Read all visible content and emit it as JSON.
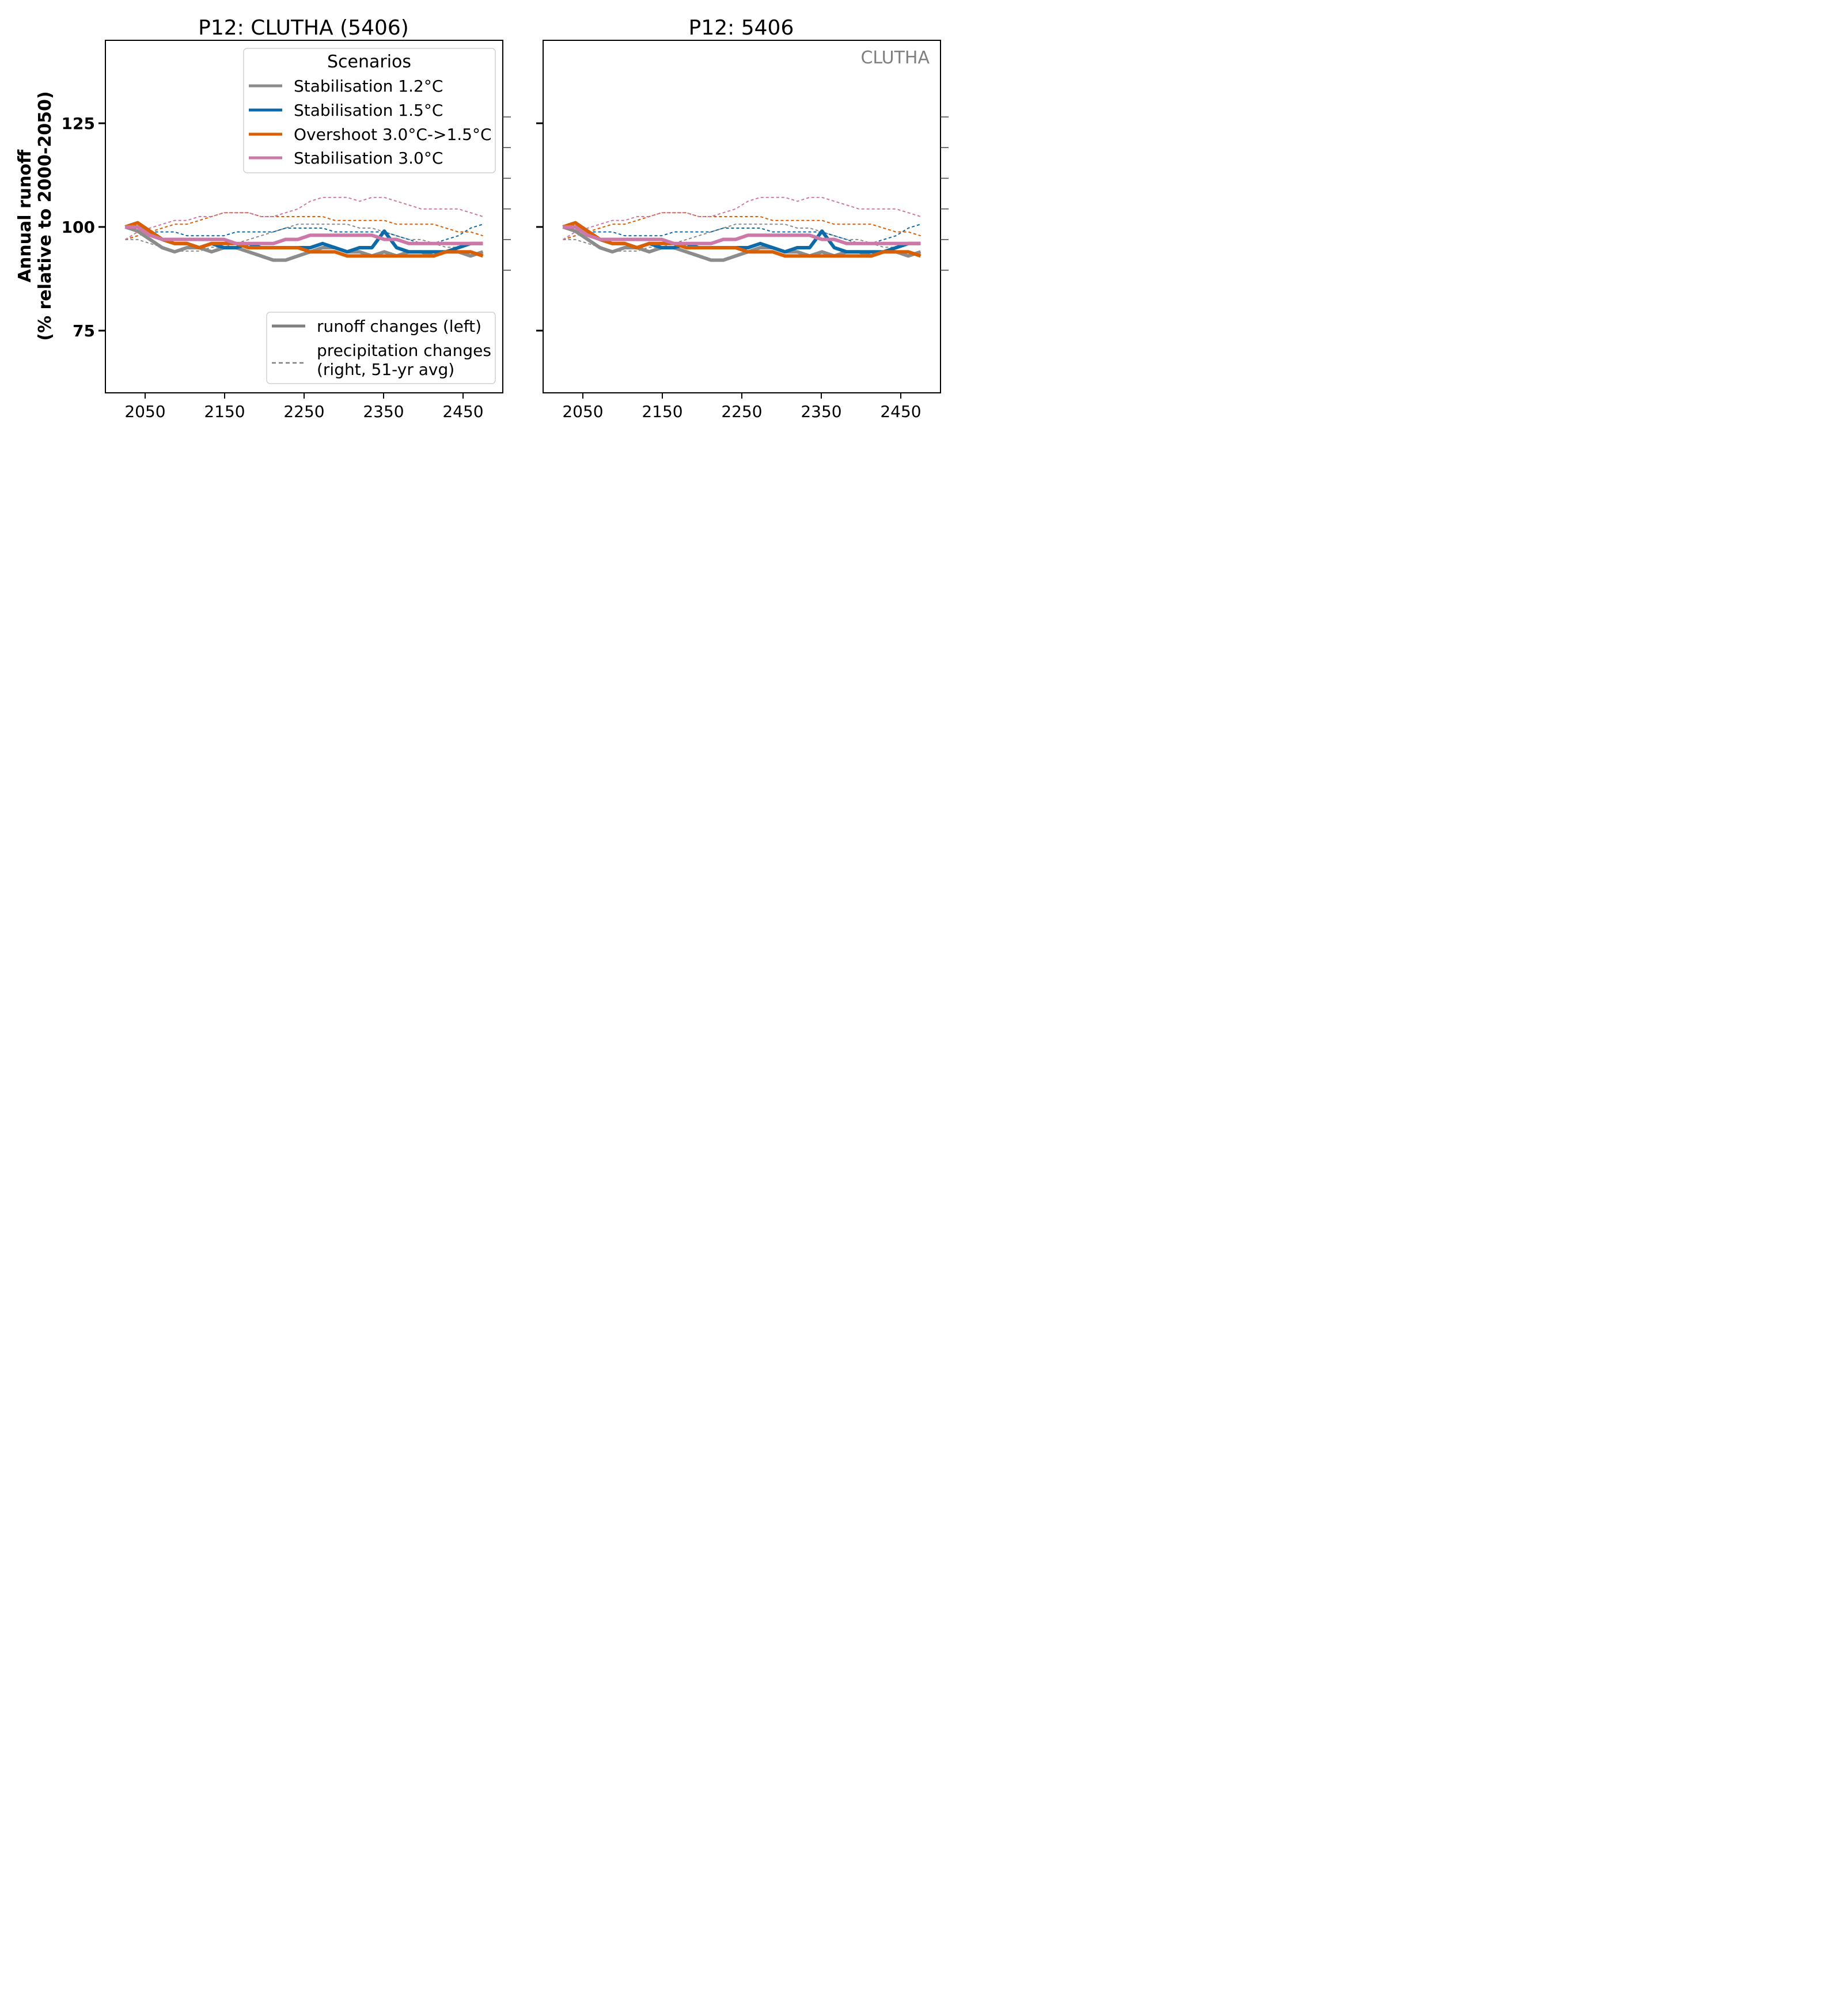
{
  "chart_data": {
    "type": "line",
    "ylabel_line1": "Annual runoff",
    "ylabel_line2": "(% relative to 2000-2050)",
    "ylim": [
      60,
      145
    ],
    "yticks": [
      75,
      100,
      125
    ],
    "xlim": [
      2000,
      2500
    ],
    "xticks": [
      2050,
      2150,
      2250,
      2350,
      2450
    ],
    "x_start": 2025,
    "x_end": 2475,
    "series_meta": [
      {
        "name": "Stabilisation 1.2°C",
        "color": "#8c8c8c"
      },
      {
        "name": "Stabilisation 1.5°C",
        "color": "#0d6aa8"
      },
      {
        "name": "Overshoot 3.0°C->1.5°C",
        "color": "#d95f02"
      },
      {
        "name": "Stabilisation 3.0°C",
        "color": "#cc79a7"
      }
    ],
    "runoff_series": [
      [
        100,
        99,
        97,
        95,
        94,
        95,
        95,
        94,
        95,
        95,
        94,
        93,
        92,
        92,
        93,
        94,
        95,
        95,
        94,
        94,
        93,
        94,
        93,
        94,
        94,
        93,
        94,
        94,
        93,
        94
      ],
      [
        100,
        101,
        99,
        97,
        96,
        96,
        95,
        96,
        95,
        95,
        96,
        95,
        95,
        95,
        95,
        95,
        96,
        95,
        94,
        95,
        95,
        99,
        95,
        94,
        94,
        94,
        94,
        95,
        96,
        96
      ],
      [
        100,
        101,
        99,
        97,
        96,
        96,
        95,
        96,
        96,
        96,
        95,
        95,
        95,
        95,
        95,
        94,
        94,
        94,
        93,
        93,
        93,
        93,
        93,
        93,
        93,
        93,
        94,
        94,
        94,
        93
      ],
      [
        100,
        100,
        98,
        97,
        97,
        97,
        97,
        97,
        97,
        96,
        96,
        96,
        96,
        97,
        97,
        98,
        98,
        98,
        98,
        98,
        98,
        97,
        97,
        96,
        96,
        96,
        96,
        96,
        96,
        96
      ]
    ],
    "precip_series": [
      [
        100,
        100,
        99,
        98,
        97,
        97,
        97,
        98,
        98,
        99,
        100,
        101,
        102,
        103,
        104,
        104,
        104,
        104,
        104,
        103,
        103,
        102,
        101,
        100,
        100,
        99,
        98,
        98,
        99,
        99
      ],
      [
        100,
        101,
        102,
        102,
        102,
        101,
        101,
        101,
        101,
        102,
        102,
        102,
        102,
        103,
        103,
        103,
        103,
        102,
        102,
        102,
        102,
        102,
        101,
        100,
        99,
        99,
        100,
        101,
        103,
        104
      ],
      [
        100,
        101,
        102,
        103,
        104,
        104,
        105,
        106,
        107,
        107,
        107,
        106,
        106,
        106,
        106,
        106,
        106,
        105,
        105,
        105,
        105,
        105,
        104,
        104,
        104,
        104,
        103,
        102,
        102,
        101
      ],
      [
        100,
        102,
        103,
        104,
        105,
        105,
        106,
        106,
        107,
        107,
        107,
        106,
        106,
        107,
        108,
        110,
        111,
        111,
        111,
        110,
        111,
        111,
        110,
        109,
        108,
        108,
        108,
        108,
        107,
        106
      ]
    ],
    "right_axis_ticks": [
      92,
      100,
      108,
      116,
      124,
      132
    ],
    "panels": [
      {
        "title": "P12: CLUTHA (5406)",
        "basin_label": ""
      },
      {
        "title": "P12: 5406",
        "basin_label": "CLUTHA"
      }
    ],
    "legend": {
      "title": "Scenarios",
      "placement": "upper right"
    },
    "legend2": {
      "placement": "lower right",
      "solid_label": "runoff changes (left)",
      "dashed_label_line1": "precipitation changes",
      "dashed_label_line2": "(right, 51-yr avg)"
    }
  }
}
